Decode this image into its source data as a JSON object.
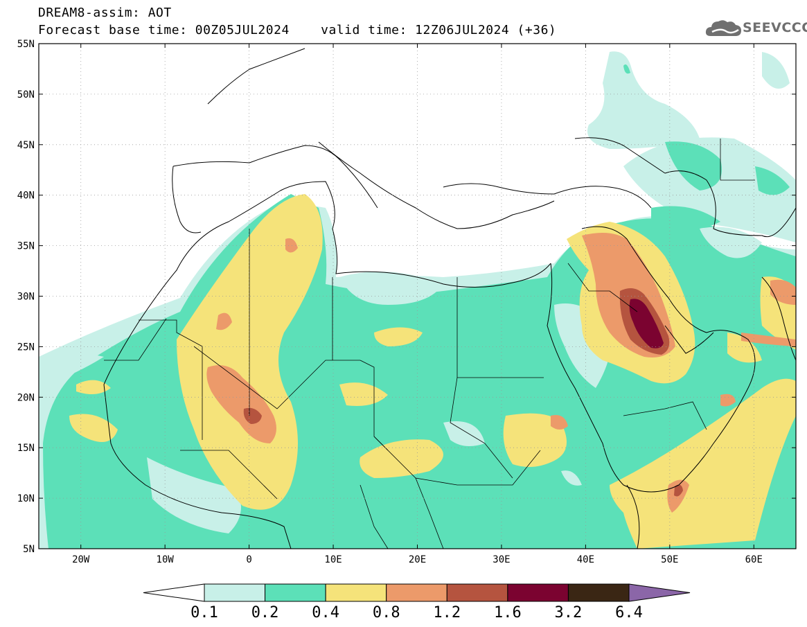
{
  "header": {
    "line1": "DREAM8-assim: AOT",
    "line2": "Forecast base time: 00Z05JUL2024    valid time: 12Z06JUL2024 (+36)"
  },
  "logo": {
    "text": "SEEVCCC",
    "icon": "cloud-icon"
  },
  "map": {
    "lon_range": [
      -25,
      65
    ],
    "lat_range": [
      5,
      55
    ],
    "lat_ticks": [
      {
        "value": 55,
        "label": "55N"
      },
      {
        "value": 50,
        "label": "50N"
      },
      {
        "value": 45,
        "label": "45N"
      },
      {
        "value": 40,
        "label": "40N"
      },
      {
        "value": 35,
        "label": "35N"
      },
      {
        "value": 30,
        "label": "30N"
      },
      {
        "value": 25,
        "label": "25N"
      },
      {
        "value": 20,
        "label": "20N"
      },
      {
        "value": 15,
        "label": "15N"
      },
      {
        "value": 10,
        "label": "10N"
      },
      {
        "value": 5,
        "label": "5N"
      }
    ],
    "lon_ticks": [
      {
        "value": -20,
        "label": "20W"
      },
      {
        "value": -10,
        "label": "10W"
      },
      {
        "value": 0,
        "label": "0"
      },
      {
        "value": 10,
        "label": "10E"
      },
      {
        "value": 20,
        "label": "20E"
      },
      {
        "value": 30,
        "label": "30E"
      },
      {
        "value": 40,
        "label": "40E"
      },
      {
        "value": 50,
        "label": "50E"
      },
      {
        "value": 60,
        "label": "60E"
      }
    ],
    "grid": "dotted"
  },
  "colorbar": {
    "levels": [
      "0.1",
      "0.2",
      "0.4",
      "0.8",
      "1.2",
      "1.6",
      "3.2",
      "6.4"
    ],
    "colors": [
      "#c8f0e8",
      "#5ce0b8",
      "#f5e37a",
      "#ec9a6a",
      "#b5543f",
      "#7b0330",
      "#3a2614",
      "#8b66a8"
    ]
  }
}
